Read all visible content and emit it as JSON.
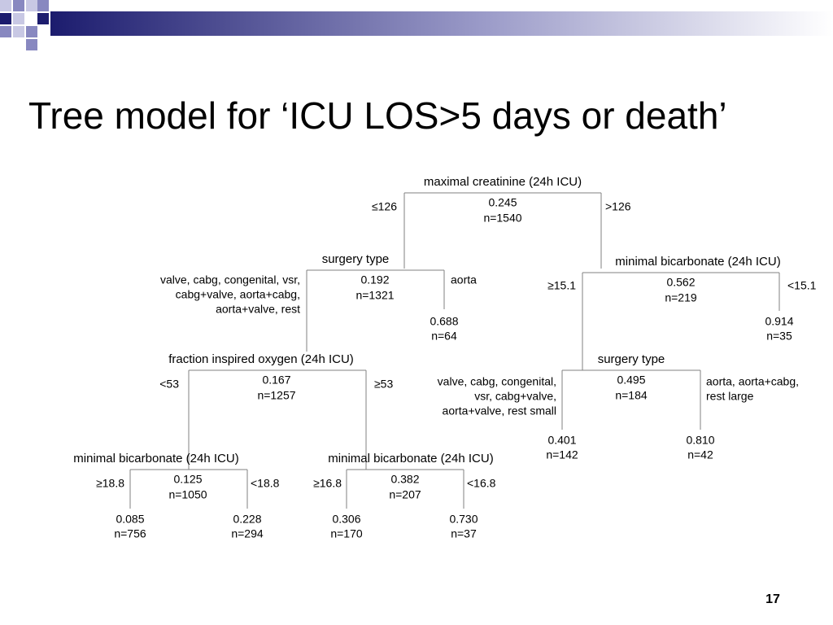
{
  "title": "Tree model for ‘ICU LOS>5 days or death’",
  "page_number": "17",
  "nodes": [
    {
      "label": "maximal creatinine (24h ICU)",
      "value": "0.245",
      "n": "n=1540",
      "left_edge": [
        "≤126"
      ],
      "right_edge": [
        ">126"
      ]
    },
    {
      "label": "surgery type",
      "value": "0.192",
      "n": "n=1321",
      "left_edge": [
        "valve, cabg, congenital, vsr,",
        "cabg+valve, aorta+cabg,",
        "aorta+valve, rest"
      ],
      "right_edge": [
        "aorta"
      ]
    },
    {
      "label": "minimal bicarbonate (24h ICU)",
      "value": "0.562",
      "n": "n=219",
      "left_edge": [
        "≥15.1"
      ],
      "right_edge": [
        "<15.1"
      ]
    },
    {
      "label": "fraction inspired oxygen (24h ICU)",
      "value": "0.167",
      "n": "n=1257",
      "left_edge": [
        "<53"
      ],
      "right_edge": [
        "≥53"
      ]
    },
    {
      "label": "surgery type",
      "value": "0.495",
      "n": "n=184",
      "left_edge": [
        "valve, cabg, congenital,",
        "vsr, cabg+valve,",
        "aorta+valve, rest small"
      ],
      "right_edge": [
        "aorta, aorta+cabg,",
        "rest large"
      ]
    },
    {
      "label": "minimal bicarbonate (24h ICU)",
      "value": "0.125",
      "n": "n=1050",
      "left_edge": [
        "≥18.8"
      ],
      "right_edge": [
        "<18.8"
      ]
    },
    {
      "label": "minimal bicarbonate (24h ICU)",
      "value": "0.382",
      "n": "n=207",
      "left_edge": [
        "≥16.8"
      ],
      "right_edge": [
        "<16.8"
      ]
    }
  ],
  "leaves": [
    {
      "value": "0.688",
      "n": "n=64"
    },
    {
      "value": "0.914",
      "n": "n=35"
    },
    {
      "value": "0.401",
      "n": "n=142"
    },
    {
      "value": "0.810",
      "n": "n=42"
    },
    {
      "value": "0.085",
      "n": "n=756"
    },
    {
      "value": "0.228",
      "n": "n=294"
    },
    {
      "value": "0.306",
      "n": "n=170"
    },
    {
      "value": "0.730",
      "n": "n=37"
    }
  ]
}
